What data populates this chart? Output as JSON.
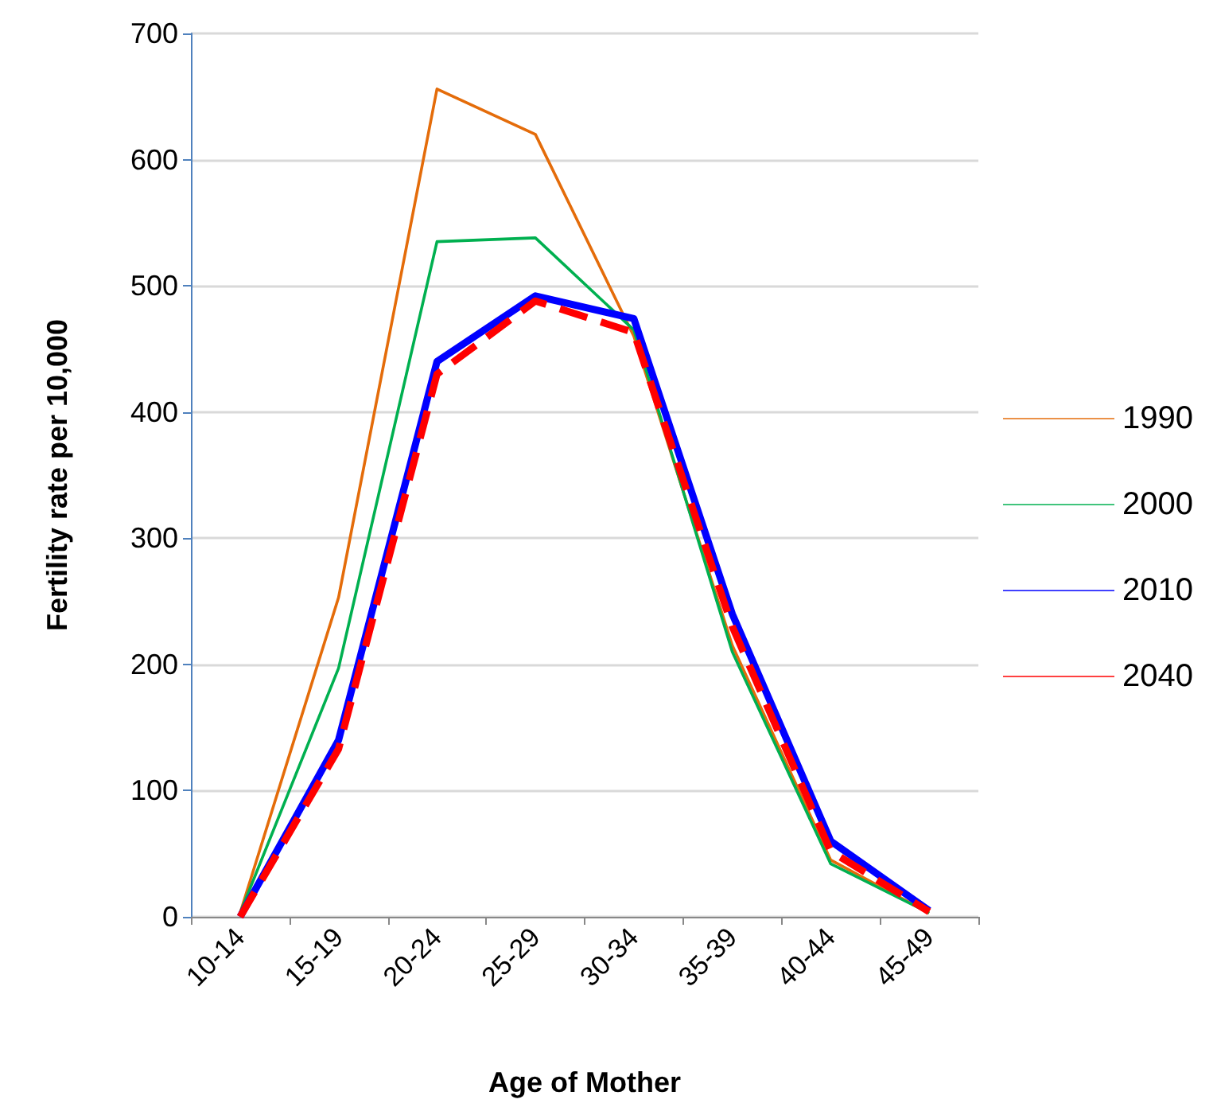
{
  "chart_data": {
    "type": "line",
    "xlabel": "Age of Mother",
    "ylabel": "Fertility rate per 10,000",
    "categories": [
      "10-14",
      "15-19",
      "20-24",
      "25-29",
      "30-34",
      "35-39",
      "40-44",
      "45-49"
    ],
    "series": [
      {
        "name": "1990",
        "color": "#e46c0a",
        "line_style": "solid",
        "values": [
          3,
          253,
          656,
          620,
          460,
          215,
          45,
          3
        ]
      },
      {
        "name": "2000",
        "color": "#00b050",
        "line_style": "solid",
        "values": [
          3,
          197,
          535,
          538,
          465,
          210,
          42,
          3
        ]
      },
      {
        "name": "2010",
        "color": "#0000ff",
        "line_style": "solid",
        "values": [
          0,
          140,
          440,
          492,
          474,
          240,
          60,
          5
        ]
      },
      {
        "name": "2040",
        "color": "#ff0000",
        "line_style": "dashed",
        "values": [
          0,
          133,
          430,
          488,
          463,
          230,
          52,
          4
        ]
      }
    ],
    "ylim": [
      0,
      700
    ],
    "yticks": [
      0,
      100,
      200,
      300,
      400,
      500,
      600,
      700
    ],
    "grid": "y",
    "legend": "right",
    "marker": "none"
  }
}
